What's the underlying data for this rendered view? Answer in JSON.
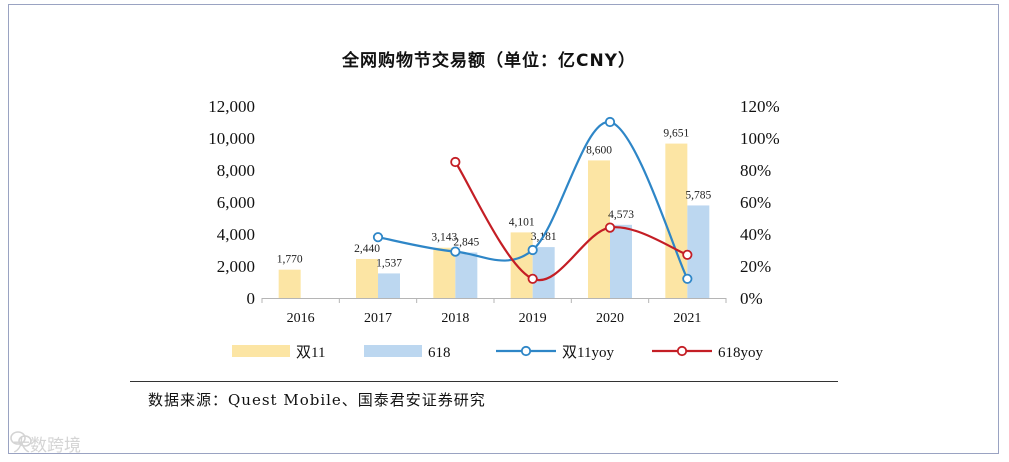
{
  "chart_data": {
    "type": "bar",
    "title": "全网购物节交易额（单位：亿CNY）",
    "categories": [
      "2016",
      "2017",
      "2018",
      "2019",
      "2020",
      "2021"
    ],
    "series": [
      {
        "name": "双11",
        "kind": "bar",
        "axis": "left",
        "color": "#fce5a4",
        "values": [
          1770,
          2440,
          3143,
          4101,
          8600,
          9651
        ],
        "labels": [
          "1,770",
          "2,440",
          "3,143",
          "4,101",
          "8,600",
          "9,651"
        ]
      },
      {
        "name": "618",
        "kind": "bar",
        "axis": "left",
        "color": "#bcd7f0",
        "values": [
          null,
          1537,
          2845,
          3181,
          4573,
          5785
        ],
        "labels": [
          "",
          "1,537",
          "2,845",
          "3,181",
          "4,573",
          "5,785"
        ]
      },
      {
        "name": "双11yoy",
        "kind": "line",
        "axis": "right",
        "color": "#2e86c7",
        "values": [
          null,
          0.38,
          0.29,
          0.3,
          1.1,
          0.12
        ]
      },
      {
        "name": "618yoy",
        "kind": "line",
        "axis": "right",
        "color": "#c41e25",
        "values": [
          null,
          null,
          0.85,
          0.12,
          0.44,
          0.27
        ]
      }
    ],
    "y_left": {
      "min": 0,
      "max": 12000,
      "ticks": [
        "0",
        "2,000",
        "4,000",
        "6,000",
        "8,000",
        "10,000",
        "12,000"
      ]
    },
    "y_right": {
      "min": 0,
      "max": 1.2,
      "ticks": [
        "0%",
        "20%",
        "40%",
        "60%",
        "80%",
        "100%",
        "120%"
      ]
    },
    "grid": false,
    "legend_position": "bottom"
  },
  "source_note": "数据来源：Quest Mobile、国泰君安证券研究",
  "watermark": {
    "text": "大数跨境",
    "icon": "wechat-logo-icon"
  }
}
